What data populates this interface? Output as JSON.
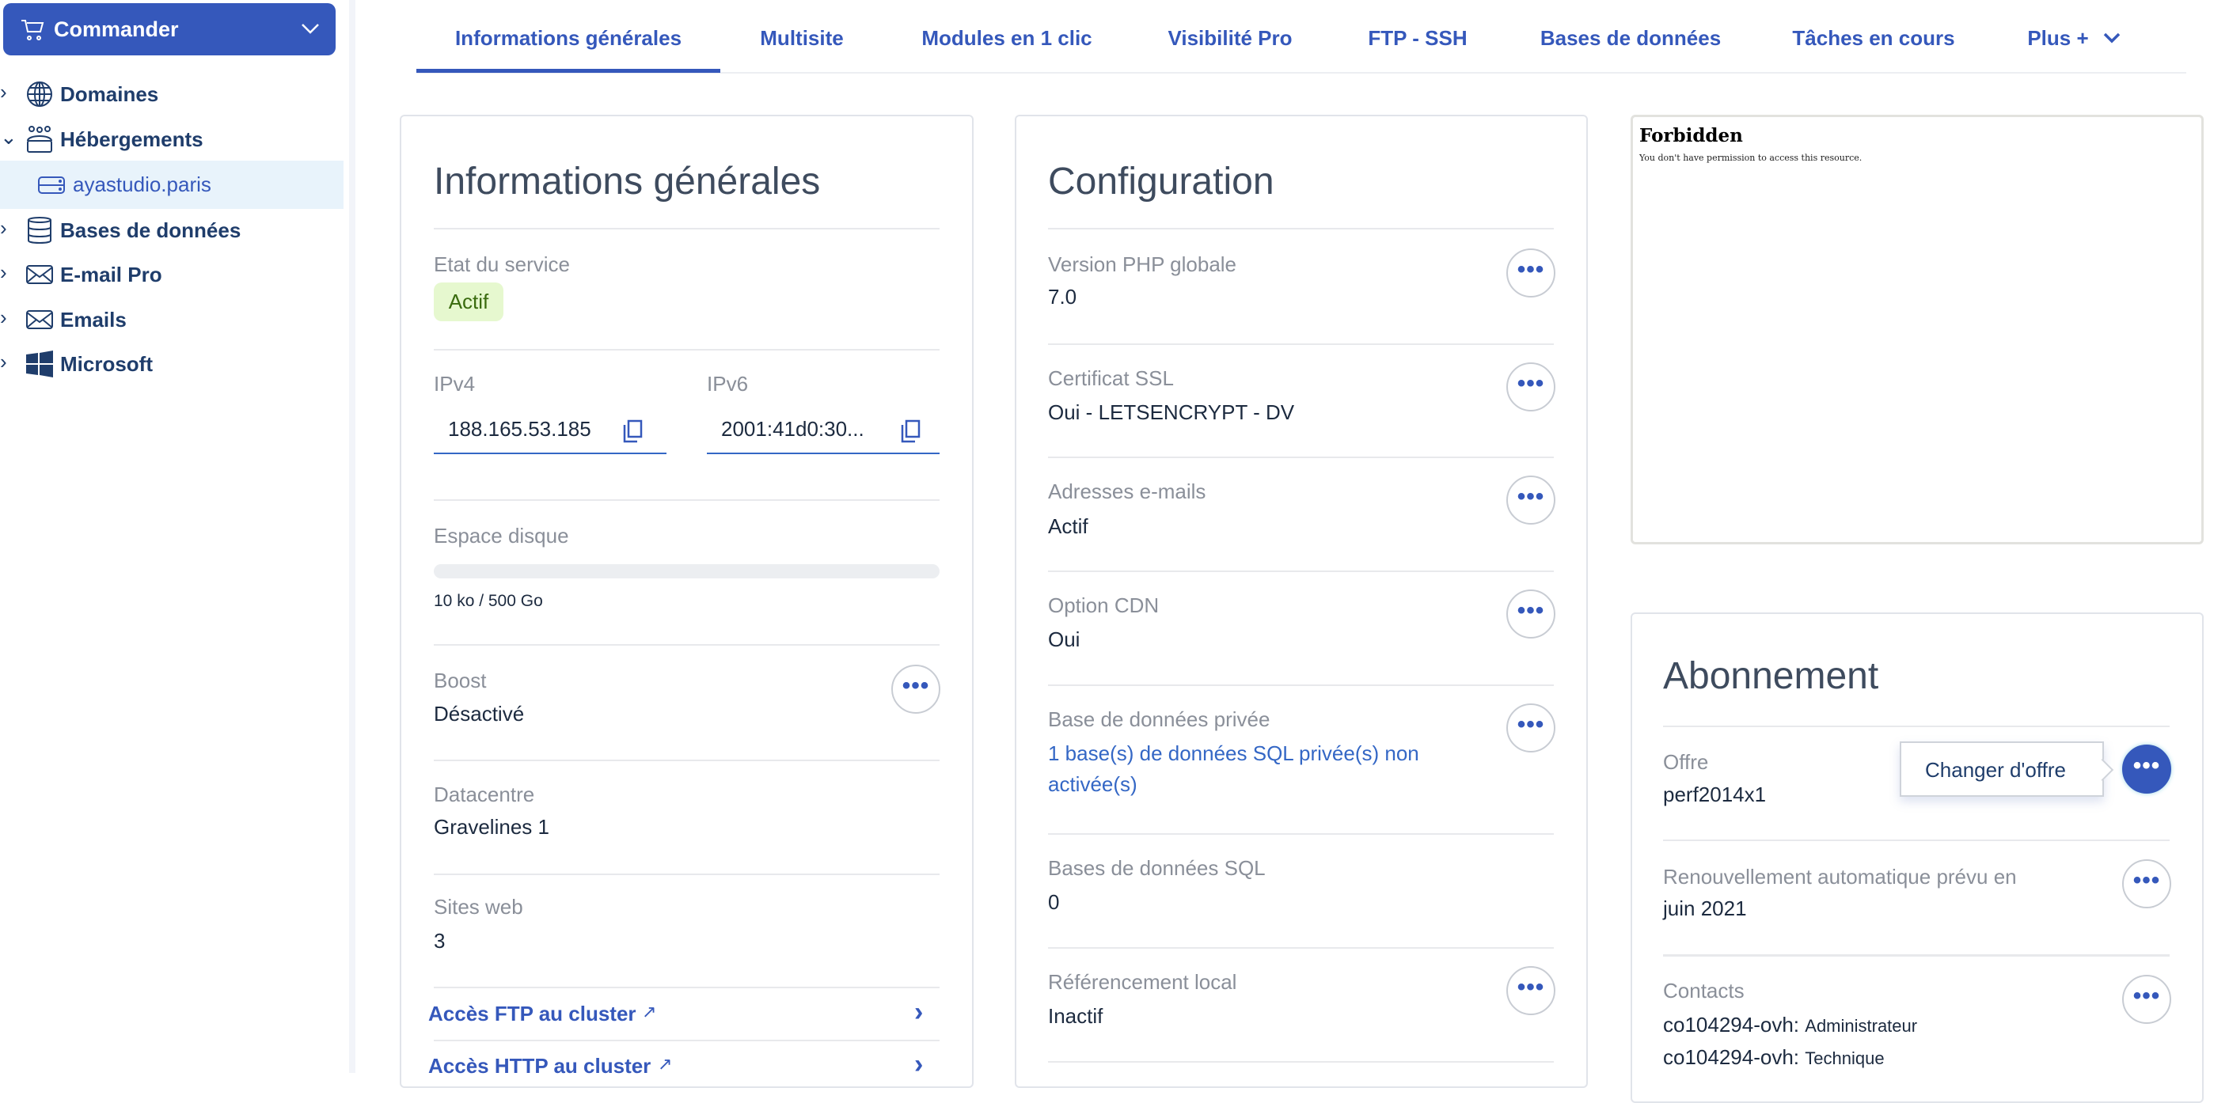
{
  "sidebar": {
    "order_label": "Commander",
    "items": [
      {
        "label": "Domaines",
        "icon": "globe-icon"
      },
      {
        "label": "Hébergements",
        "icon": "hosting-icon"
      },
      {
        "label": "ayastudio.paris",
        "icon": "server-icon"
      },
      {
        "label": "Bases de données",
        "icon": "database-icon"
      },
      {
        "label": "E-mail Pro",
        "icon": "mail-icon"
      },
      {
        "label": "Emails",
        "icon": "mail-icon"
      },
      {
        "label": "Microsoft",
        "icon": "windows-icon"
      }
    ]
  },
  "tabs": [
    "Informations générales",
    "Multisite",
    "Modules en 1 clic",
    "Visibilité Pro",
    "FTP - SSH",
    "Bases de données",
    "Tâches en cours",
    "Plus +"
  ],
  "info": {
    "title": "Informations générales",
    "service_label": "Etat du service",
    "service_status": "Actif",
    "ipv4_label": "IPv4",
    "ipv4": "188.165.53.185",
    "ipv6_label": "IPv6",
    "ipv6": "2001:41d0:30...",
    "disk_label": "Espace disque",
    "disk_value": "10 ko / 500 Go",
    "disk_used_percent": 0,
    "boost_label": "Boost",
    "boost": "Désactivé",
    "dc_label": "Datacentre",
    "dc": "Gravelines 1",
    "sites_label": "Sites web",
    "sites": "3",
    "ftp_link": "Accès FTP au cluster",
    "http_link": "Accès HTTP au cluster"
  },
  "config": {
    "title": "Configuration",
    "rows": [
      {
        "label": "Version PHP globale",
        "value": "7.0"
      },
      {
        "label": "Certificat SSL",
        "value": "Oui - LETSENCRYPT - DV"
      },
      {
        "label": "Adresses e-mails",
        "value": "Actif"
      },
      {
        "label": "Option CDN",
        "value": "Oui"
      },
      {
        "label": "Base de données privée",
        "value1": "1 base(s) de données SQL privée(s) non",
        "value2": "activée(s)"
      },
      {
        "label": "Bases de données SQL",
        "value": "0"
      },
      {
        "label": "Référencement local",
        "value": "Inactif"
      }
    ]
  },
  "frame": {
    "title": "Forbidden",
    "message": "You don't have permission to access this resource."
  },
  "subscription": {
    "title": "Abonnement",
    "offer_label": "Offre",
    "offer": "perf2014x1",
    "popover_item": "Changer d'offre",
    "renew_label": "Renouvellement automatique prévu en",
    "renew": "juin 2021",
    "contacts_label": "Contacts",
    "contacts": [
      {
        "id": "co104294-ovh:",
        "role": "Administrateur"
      },
      {
        "id": "co104294-ovh:",
        "role": "Technique"
      }
    ]
  },
  "colors": {
    "primary": "#3558bb",
    "badge_bg": "#e6f8cf"
  }
}
